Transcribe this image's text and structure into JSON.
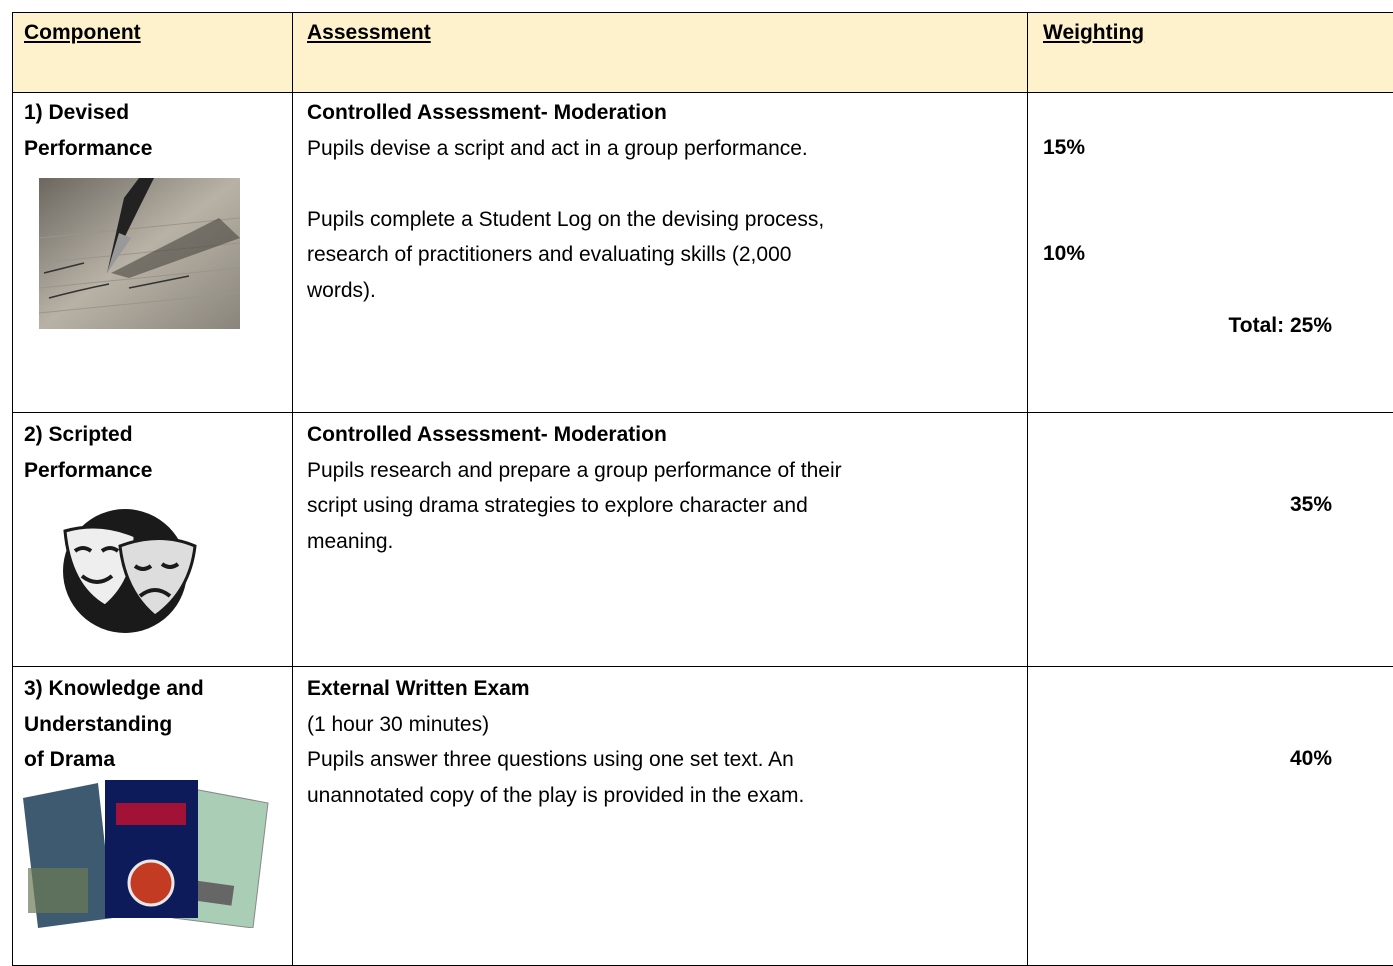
{
  "header": {
    "component": "Component",
    "assessment": "Assessment",
    "weighting": "Weighting"
  },
  "rows": [
    {
      "component": [
        "1) Devised",
        "Performance"
      ],
      "assessment_title": "Controlled Assessment- Moderation",
      "assessment": [
        [
          "Pupils devise a script and act in a group performance."
        ],
        [
          "Pupils complete a Student Log on the devising process,",
          "research of practitioners and evaluating skills (2,000",
          "words)."
        ]
      ],
      "weighting": [
        "15%",
        "10%"
      ],
      "total": "Total: 25%"
    },
    {
      "component": [
        "2) Scripted",
        "Performance"
      ],
      "assessment_title": "Controlled Assessment- Moderation",
      "assessment": [
        [
          "Pupils research and prepare a group performance of their",
          "script using drama strategies to explore character and",
          "meaning."
        ]
      ],
      "weighting": [
        "35%"
      ]
    },
    {
      "component": [
        "3) Knowledge and",
        "Understanding",
        "of Drama"
      ],
      "assessment_title": "External Written Exam",
      "assessment": [
        [
          "(1 hour 30 minutes)",
          "Pupils answer three questions using one set text. An",
          "unannotated copy of the play is provided in the exam."
        ]
      ],
      "weighting": [
        "40%"
      ]
    }
  ]
}
